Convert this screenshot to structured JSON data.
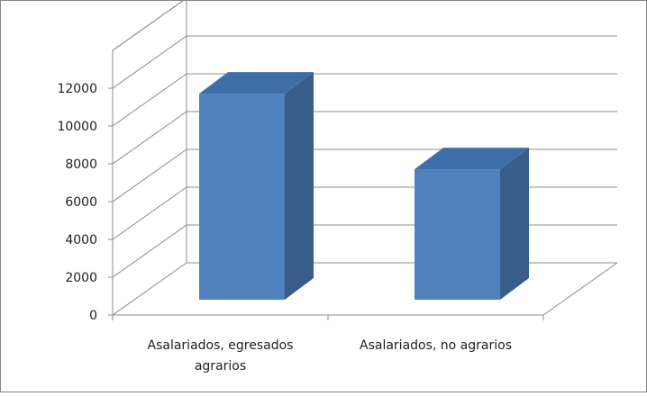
{
  "chart_data": {
    "type": "bar",
    "bar_style": "3d-column",
    "categories": [
      "Asalariados, egresados agrarios",
      "Asalariados, no agrarios"
    ],
    "category_label_lines": [
      [
        "Asalariados, egresados",
        "agrarios"
      ],
      [
        "Asalariados, no agrarios"
      ]
    ],
    "values": [
      10900,
      6900
    ],
    "ylim": [
      0,
      14000
    ],
    "yticks": [
      0,
      2000,
      4000,
      6000,
      8000,
      10000,
      12000
    ],
    "ytick_labels": [
      "0",
      "2000",
      "4000",
      "6000",
      "8000",
      "10000",
      "12000"
    ],
    "title": "",
    "xlabel": "",
    "ylabel": "",
    "grid": true,
    "legend": "none",
    "colors": {
      "bar_front": "#4f81bd",
      "bar_top": "#3e6ea7",
      "bar_side": "#385d8a",
      "grid": "#8c8c8c",
      "text": "#1f1f1f"
    }
  }
}
